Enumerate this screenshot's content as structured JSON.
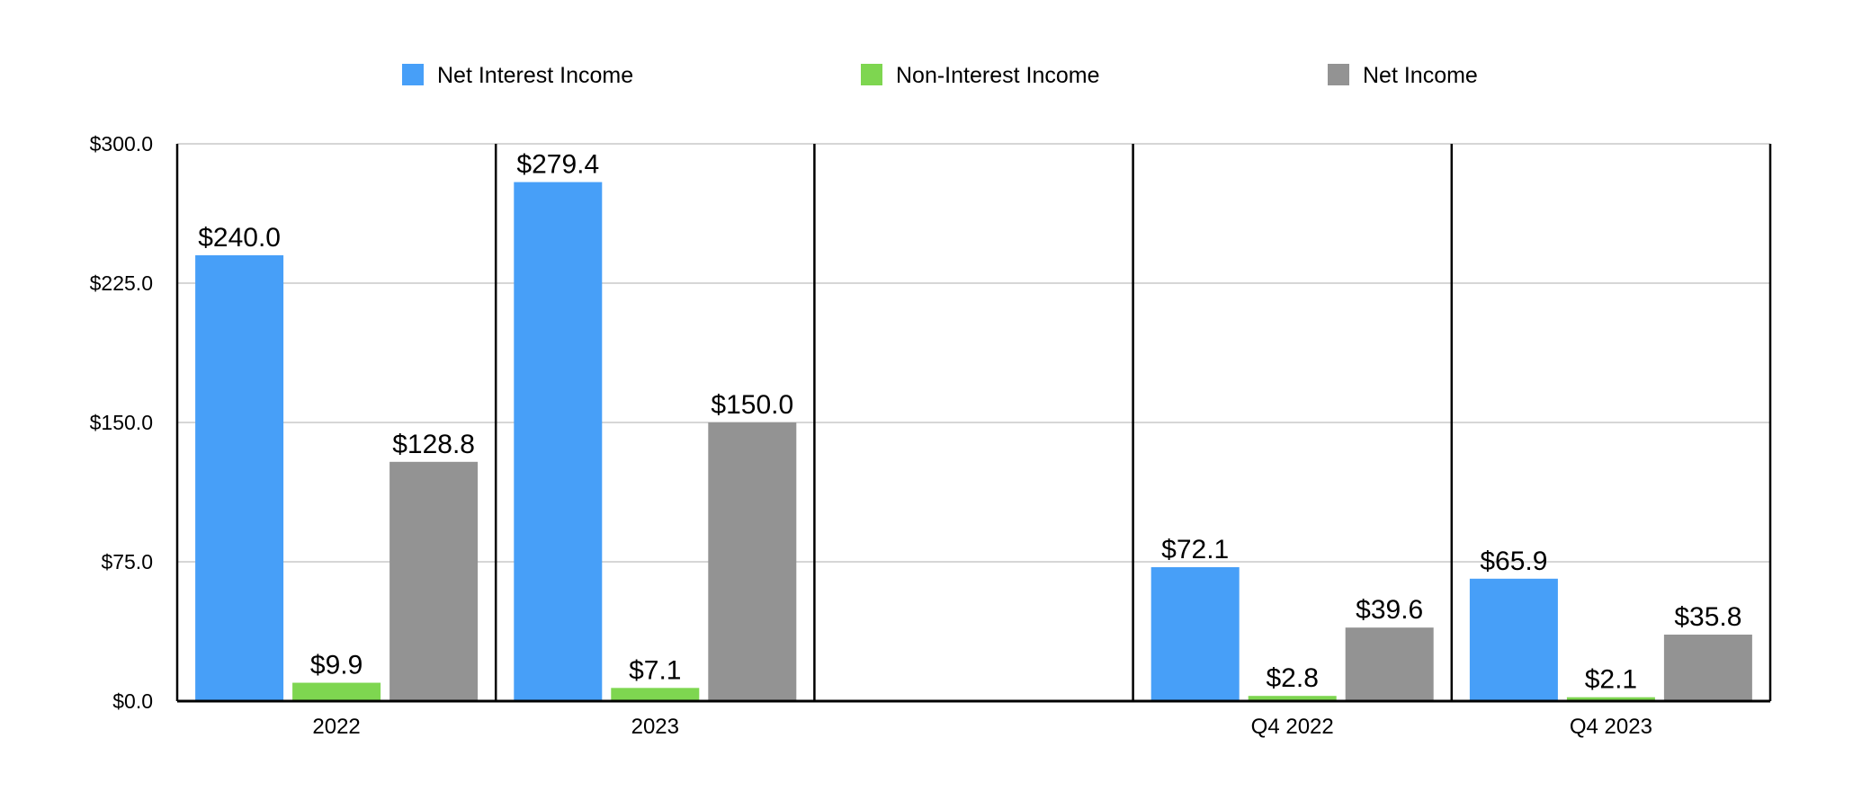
{
  "chart_data": {
    "type": "bar",
    "title": "",
    "xlabel": "",
    "ylabel": "",
    "ylim": [
      0,
      300
    ],
    "yticks": [
      "$0.0",
      "$75.0",
      "$150.0",
      "$225.0",
      "$300.0"
    ],
    "ytick_values": [
      0,
      75,
      150,
      225,
      300
    ],
    "grid": true,
    "legend_position": "top-center",
    "categories": [
      "2022",
      "2023",
      "",
      "Q4 2022",
      "Q4 2023"
    ],
    "series": [
      {
        "name": "Net Interest Income",
        "color": "#479ff8",
        "values": [
          240.0,
          279.4,
          null,
          72.1,
          65.9
        ],
        "labels": [
          "$240.0",
          "$279.4",
          "",
          "$72.1",
          "$65.9"
        ]
      },
      {
        "name": "Non-Interest Income",
        "color": "#7ed650",
        "values": [
          9.9,
          7.1,
          null,
          2.8,
          2.1
        ],
        "labels": [
          "$9.9",
          "$7.1",
          "",
          "$2.8",
          "$2.1"
        ]
      },
      {
        "name": "Net Income",
        "color": "#939393",
        "values": [
          128.8,
          150.0,
          null,
          39.6,
          35.8
        ],
        "labels": [
          "$128.8",
          "$150.0",
          "",
          "$39.6",
          "$35.8"
        ]
      }
    ]
  }
}
